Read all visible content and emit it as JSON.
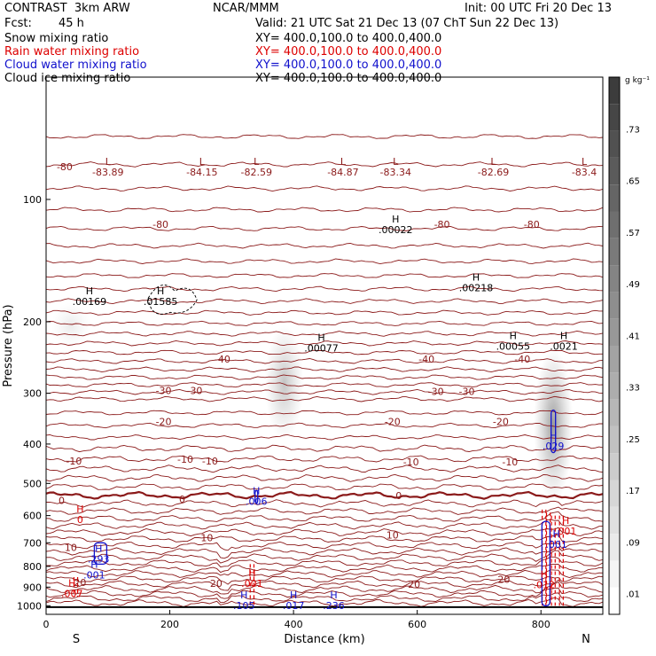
{
  "header": {
    "model": "CONTRAST  3km ARW",
    "org": "NCAR/MMM",
    "init": "Init: 00 UTC Fri 20 Dec 13",
    "fcst_label": "Fcst:",
    "fcst_value": "45 h",
    "valid": "Valid: 21 UTC Sat 21 Dec 13 (07 ChT Sun 22 Dec 13)"
  },
  "legend": [
    {
      "name": "Snow mixing ratio",
      "color": "#000000",
      "xy": "XY= 400.0,100.0 to 400.0,400.0"
    },
    {
      "name": "Rain water mixing ratio",
      "color": "#dd0000",
      "xy": "XY= 400.0,100.0 to 400.0,400.0"
    },
    {
      "name": "Cloud water mixing ratio",
      "color": "#1010cc",
      "xy": "XY= 400.0,100.0 to 400.0,400.0"
    },
    {
      "name": "Cloud ice mixing ratio",
      "color": "#000000",
      "xy": "XY= 400.0,100.0 to 400.0,400.0"
    }
  ],
  "colorbar": {
    "unit": "g kg⁻¹",
    "labels": [
      ".73",
      ".65",
      ".57",
      ".49",
      ".41",
      ".33",
      ".25",
      ".17",
      ".09",
      ".01"
    ]
  },
  "chart_data": {
    "type": "cross-section",
    "xlabel": "Distance (km)",
    "ylabel": "Pressure (hPa)",
    "xlim": [
      0,
      900
    ],
    "ylim": [
      1050,
      50
    ],
    "y_scale": "log",
    "x_ticks": [
      0,
      200,
      400,
      600,
      800
    ],
    "y_ticks": [
      100,
      200,
      300,
      400,
      500,
      600,
      700,
      800,
      900,
      1000
    ],
    "x_ends": {
      "left": "S",
      "right": "N"
    },
    "temperature_contour_color": "#8b1a1a",
    "temperature_labels": [
      {
        "text": "-80",
        "x": 30,
        "p": 83
      },
      {
        "text": "-80",
        "x": 185,
        "p": 115
      },
      {
        "text": "-80",
        "x": 640,
        "p": 115
      },
      {
        "text": "-80",
        "x": 785,
        "p": 115
      },
      {
        "text": "-40",
        "x": 285,
        "p": 247
      },
      {
        "text": "-40",
        "x": 615,
        "p": 247
      },
      {
        "text": "-40",
        "x": 770,
        "p": 247
      },
      {
        "text": "-30",
        "x": 190,
        "p": 295
      },
      {
        "text": "-30",
        "x": 240,
        "p": 295
      },
      {
        "text": "-30",
        "x": 630,
        "p": 297
      },
      {
        "text": "-30",
        "x": 680,
        "p": 297
      },
      {
        "text": "-20",
        "x": 190,
        "p": 352
      },
      {
        "text": "-20",
        "x": 560,
        "p": 352
      },
      {
        "text": "-20",
        "x": 735,
        "p": 352
      },
      {
        "text": "-10",
        "x": 45,
        "p": 440
      },
      {
        "text": "-10",
        "x": 225,
        "p": 436
      },
      {
        "text": "-10",
        "x": 265,
        "p": 440
      },
      {
        "text": "-10",
        "x": 590,
        "p": 442
      },
      {
        "text": "-10",
        "x": 750,
        "p": 442
      },
      {
        "text": "0",
        "x": 25,
        "p": 550
      },
      {
        "text": "0",
        "x": 220,
        "p": 547
      },
      {
        "text": "0",
        "x": 570,
        "p": 535
      },
      {
        "text": "10",
        "x": 40,
        "p": 718
      },
      {
        "text": "10",
        "x": 260,
        "p": 680
      },
      {
        "text": "10",
        "x": 560,
        "p": 670
      },
      {
        "text": "20",
        "x": 55,
        "p": 877
      },
      {
        "text": "20",
        "x": 275,
        "p": 880
      },
      {
        "text": "20",
        "x": 595,
        "p": 885
      },
      {
        "text": "20",
        "x": 740,
        "p": 862
      }
    ],
    "highs_lows": [
      {
        "mark": "L",
        "text": "-83.89",
        "x": 100,
        "p": 83,
        "color": "#8b1a1a"
      },
      {
        "mark": "L",
        "text": "-84.15",
        "x": 252,
        "p": 83,
        "color": "#8b1a1a"
      },
      {
        "mark": "L",
        "text": "-82.59",
        "x": 340,
        "p": 83,
        "color": "#8b1a1a"
      },
      {
        "mark": "L",
        "text": "-84.87",
        "x": 480,
        "p": 83,
        "color": "#8b1a1a"
      },
      {
        "mark": "L",
        "text": "-83.34",
        "x": 565,
        "p": 83,
        "color": "#8b1a1a"
      },
      {
        "mark": "L",
        "text": "-82.69",
        "x": 723,
        "p": 83,
        "color": "#8b1a1a"
      },
      {
        "mark": "L",
        "text": "-83.4",
        "x": 870,
        "p": 83,
        "color": "#8b1a1a"
      },
      {
        "mark": "H",
        "text": ".00022",
        "x": 565,
        "p": 115,
        "color": "#000000"
      },
      {
        "mark": "H",
        "text": ".00169",
        "x": 70,
        "p": 173,
        "color": "#000000"
      },
      {
        "mark": "H",
        "text": ".01585",
        "x": 185,
        "p": 173,
        "color": "#000000"
      },
      {
        "mark": "H",
        "text": ".00218",
        "x": 695,
        "p": 160,
        "color": "#000000"
      },
      {
        "mark": "H",
        "text": ".00077",
        "x": 445,
        "p": 225,
        "color": "#000000"
      },
      {
        "mark": "H",
        "text": ".00055",
        "x": 755,
        "p": 223,
        "color": "#000000"
      },
      {
        "mark": "H",
        "text": ".0021",
        "x": 837,
        "p": 223,
        "color": "#000000"
      },
      {
        "mark": "H",
        "text": ".029",
        "x": 820,
        "p": 392,
        "color": "#1010cc"
      },
      {
        "mark": "H",
        "text": ".006",
        "x": 340,
        "p": 537,
        "color": "#1010cc"
      },
      {
        "mark": "H",
        "text": "0",
        "x": 55,
        "p": 595,
        "color": "#dd0000"
      },
      {
        "mark": "H",
        "text": ".001",
        "x": 840,
        "p": 635,
        "color": "#dd0000"
      },
      {
        "mark": "H",
        "text": ".001",
        "x": 825,
        "p": 685,
        "color": "#1010cc"
      },
      {
        "mark": "H",
        "text": ".293",
        "x": 85,
        "p": 745,
        "color": "#1010cc"
      },
      {
        "mark": "H",
        "text": ".001",
        "x": 78,
        "p": 815,
        "color": "#1010cc"
      },
      {
        "mark": "H",
        "text": ".001",
        "x": 333,
        "p": 855,
        "color": "#dd0000"
      },
      {
        "mark": "H",
        "text": ".012",
        "x": 805,
        "p": 860,
        "color": "#dd0000"
      },
      {
        "mark": "H",
        "text": ".007",
        "x": 42,
        "p": 905,
        "color": "#dd0000"
      },
      {
        "mark": "H",
        "text": ".105",
        "x": 320,
        "p": 970,
        "color": "#1010cc"
      },
      {
        "mark": "H",
        "text": ".017",
        "x": 400,
        "p": 970,
        "color": "#1010cc"
      },
      {
        "mark": "H",
        "text": ".236",
        "x": 465,
        "p": 970,
        "color": "#1010cc"
      }
    ],
    "shaded_cloud_ice": [
      {
        "x": 40,
        "p_top": 185,
        "p_bottom": 225,
        "peak": 0.12
      },
      {
        "x": 385,
        "p_top": 210,
        "p_bottom": 380,
        "peak": 0.35
      },
      {
        "x": 820,
        "p_top": 240,
        "p_bottom": 540,
        "peak": 0.6
      }
    ]
  }
}
